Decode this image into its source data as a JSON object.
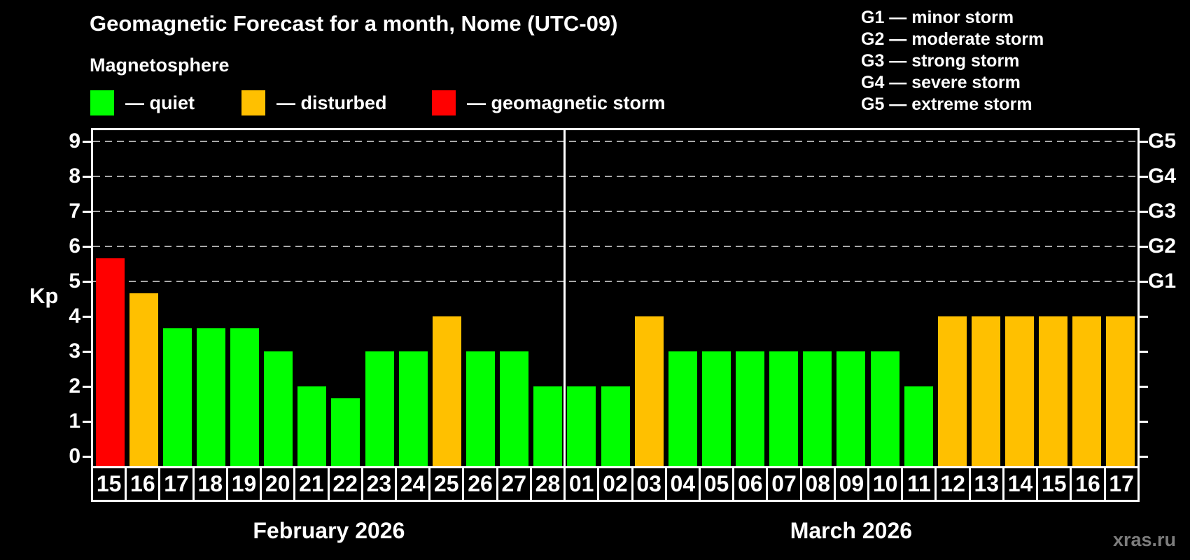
{
  "title": "Geomagnetic Forecast for a month, Nome (UTC-09)",
  "subtitle": "Magnetosphere",
  "legend": {
    "quiet": {
      "label": "— quiet",
      "color": "#00ff00"
    },
    "disturbed": {
      "label": "— disturbed",
      "color": "#ffc000"
    },
    "storm": {
      "label": "— geomagnetic storm",
      "color": "#ff0000"
    }
  },
  "g_legend": [
    "G1 — minor storm",
    "G2 — moderate storm",
    "G3 — strong storm",
    "G4 — severe storm",
    "G5 — extreme storm"
  ],
  "watermark": "xras.ru",
  "chart_data": {
    "type": "bar",
    "ylabel": "Kp",
    "ylim": [
      0,
      9
    ],
    "yticks": [
      0,
      1,
      2,
      3,
      4,
      5,
      6,
      7,
      8,
      9
    ],
    "gridlines": [
      5,
      6,
      7,
      8,
      9
    ],
    "grid_color": "#a8a8a8",
    "axis_color": "#ffffff",
    "right_axis": [
      {
        "kp": 5,
        "label": "G1"
      },
      {
        "kp": 6,
        "label": "G2"
      },
      {
        "kp": 7,
        "label": "G3"
      },
      {
        "kp": 8,
        "label": "G4"
      },
      {
        "kp": 9,
        "label": "G5"
      }
    ],
    "months": [
      {
        "label": "February 2026",
        "days": 14
      },
      {
        "label": "March 2026",
        "days": 17
      }
    ],
    "categories": [
      "15",
      "16",
      "17",
      "18",
      "19",
      "20",
      "21",
      "22",
      "23",
      "24",
      "25",
      "26",
      "27",
      "28",
      "01",
      "02",
      "03",
      "04",
      "05",
      "06",
      "07",
      "08",
      "09",
      "10",
      "11",
      "12",
      "13",
      "14",
      "15",
      "16",
      "17"
    ],
    "values": [
      5.67,
      4.67,
      3.67,
      3.67,
      3.67,
      3,
      2,
      1.67,
      3,
      3,
      4,
      3,
      3,
      2,
      2,
      2,
      4,
      3,
      3,
      3,
      3,
      3,
      3,
      3,
      2,
      4,
      4,
      4,
      4,
      4,
      4
    ],
    "statuses": [
      "storm",
      "disturbed",
      "quiet",
      "quiet",
      "quiet",
      "quiet",
      "quiet",
      "quiet",
      "quiet",
      "quiet",
      "disturbed",
      "quiet",
      "quiet",
      "quiet",
      "quiet",
      "quiet",
      "disturbed",
      "quiet",
      "quiet",
      "quiet",
      "quiet",
      "quiet",
      "quiet",
      "quiet",
      "quiet",
      "disturbed",
      "disturbed",
      "disturbed",
      "disturbed",
      "disturbed",
      "disturbed"
    ],
    "colors": {
      "quiet": "#00ff00",
      "disturbed": "#ffc000",
      "storm": "#ff0000"
    }
  }
}
